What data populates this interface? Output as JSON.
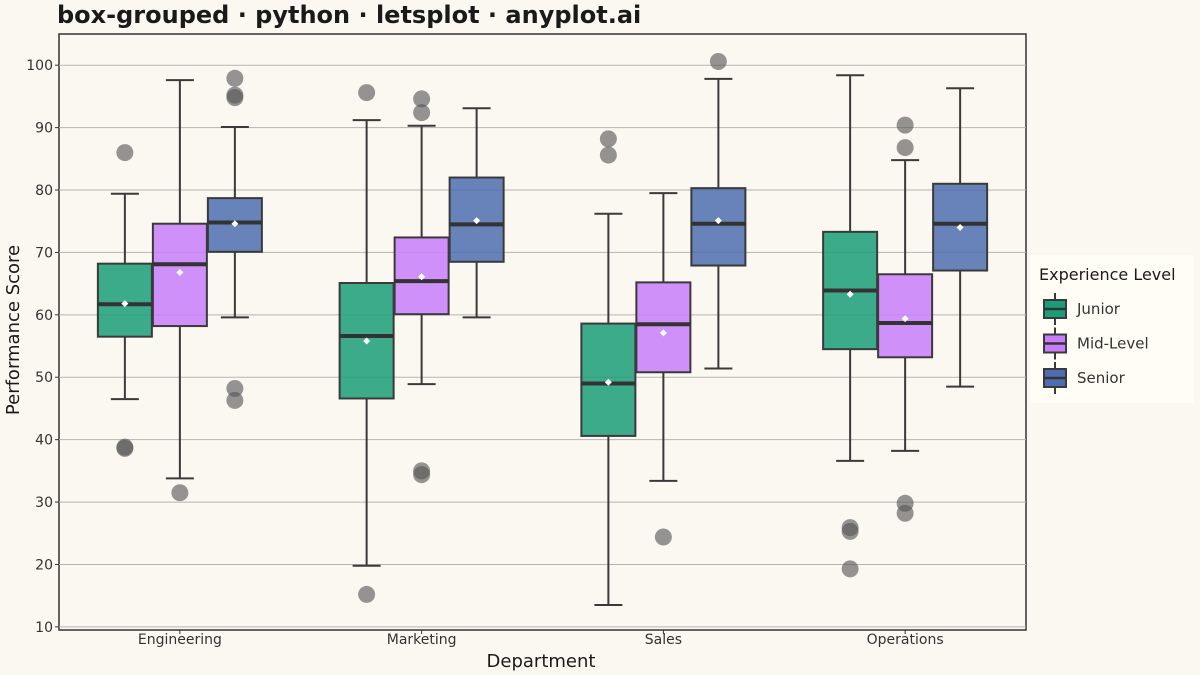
{
  "chart_data": {
    "type": "box",
    "title": "box-grouped · python · letsplot · anyplot.ai",
    "xlabel": "Department",
    "ylabel": "Performance Score",
    "ylim": [
      9.5,
      105
    ],
    "yticks": [
      10,
      20,
      30,
      40,
      50,
      60,
      70,
      80,
      90,
      100
    ],
    "grid": true,
    "categories": [
      "Engineering",
      "Marketing",
      "Sales",
      "Operations"
    ],
    "legend": {
      "title": "Experience Level",
      "position": "right"
    },
    "series": [
      {
        "name": "Junior",
        "color": "#1A9E78",
        "boxes": [
          {
            "category": "Engineering",
            "whisker_low": 46.5,
            "q1": 56.5,
            "median": 61.7,
            "q3": 68.2,
            "whisker_high": 79.4,
            "mean": 61.8,
            "outliers": [
              86.0,
              38.8,
              38.6
            ]
          },
          {
            "category": "Marketing",
            "whisker_low": 19.8,
            "q1": 46.6,
            "median": 56.6,
            "q3": 65.1,
            "whisker_high": 91.2,
            "mean": 55.8,
            "outliers": [
              95.6,
              15.2
            ]
          },
          {
            "category": "Sales",
            "whisker_low": 13.5,
            "q1": 40.6,
            "median": 49.0,
            "q3": 58.6,
            "whisker_high": 76.2,
            "mean": 49.2,
            "outliers": [
              88.2,
              85.6
            ]
          },
          {
            "category": "Operations",
            "whisker_low": 36.6,
            "q1": 54.5,
            "median": 63.9,
            "q3": 73.3,
            "whisker_high": 98.4,
            "mean": 63.3,
            "outliers": [
              25.9,
              25.3,
              19.3
            ]
          }
        ]
      },
      {
        "name": "Mid-Level",
        "color": "#C87EFA",
        "boxes": [
          {
            "category": "Engineering",
            "whisker_low": 33.8,
            "q1": 58.2,
            "median": 68.1,
            "q3": 74.6,
            "whisker_high": 97.6,
            "mean": 66.8,
            "outliers": [
              31.5
            ]
          },
          {
            "category": "Marketing",
            "whisker_low": 48.9,
            "q1": 60.1,
            "median": 65.4,
            "q3": 72.4,
            "whisker_high": 90.3,
            "mean": 66.1,
            "outliers": [
              94.6,
              92.4,
              35.0,
              34.4
            ]
          },
          {
            "category": "Sales",
            "whisker_low": 33.4,
            "q1": 50.8,
            "median": 58.5,
            "q3": 65.2,
            "whisker_high": 79.5,
            "mean": 57.1,
            "outliers": [
              24.4
            ]
          },
          {
            "category": "Operations",
            "whisker_low": 38.2,
            "q1": 53.2,
            "median": 58.7,
            "q3": 66.5,
            "whisker_high": 84.8,
            "mean": 59.4,
            "outliers": [
              90.4,
              86.8,
              29.8,
              28.2
            ]
          }
        ]
      },
      {
        "name": "Senior",
        "color": "#4D6DB0",
        "boxes": [
          {
            "category": "Engineering",
            "whisker_low": 59.6,
            "q1": 70.1,
            "median": 74.8,
            "q3": 78.7,
            "whisker_high": 90.1,
            "mean": 74.6,
            "outliers": [
              97.9,
              95.2,
              94.8,
              48.2,
              46.3
            ]
          },
          {
            "category": "Marketing",
            "whisker_low": 59.6,
            "q1": 68.5,
            "median": 74.5,
            "q3": 82.0,
            "whisker_high": 93.1,
            "mean": 75.1,
            "outliers": []
          },
          {
            "category": "Sales",
            "whisker_low": 51.4,
            "q1": 67.9,
            "median": 74.6,
            "q3": 80.3,
            "whisker_high": 97.8,
            "mean": 75.1,
            "outliers": [
              100.6
            ]
          },
          {
            "category": "Operations",
            "whisker_low": 48.5,
            "q1": 67.1,
            "median": 74.6,
            "q3": 81.0,
            "whisker_high": 96.3,
            "mean": 74.0,
            "outliers": []
          }
        ]
      }
    ]
  }
}
